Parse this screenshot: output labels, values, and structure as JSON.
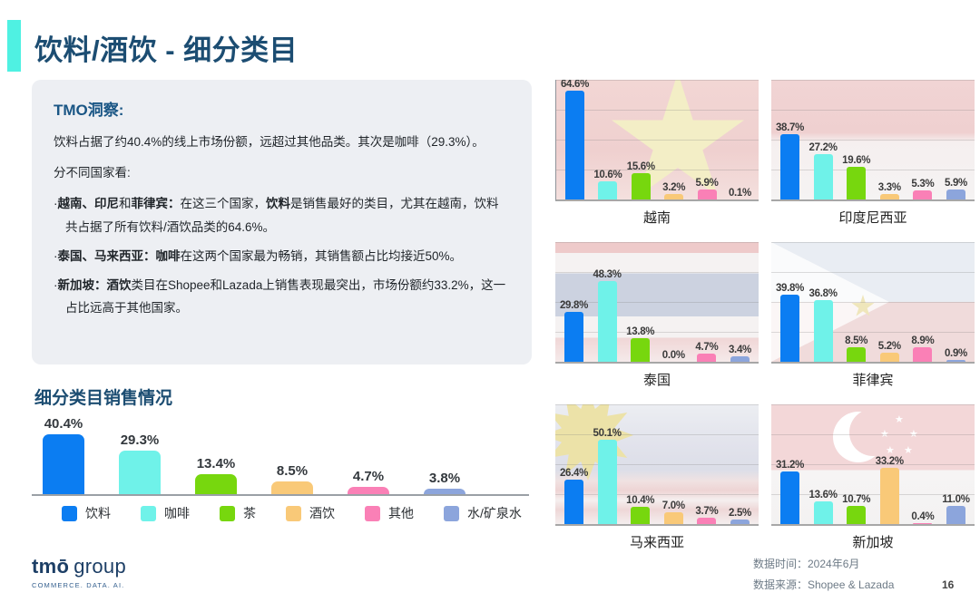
{
  "page": {
    "title": "饮料/酒饮 - 细分类目",
    "page_number": "16"
  },
  "insight": {
    "heading": "TMO洞察:",
    "para1": "饮料占据了约40.4%的线上市场份额，远超过其他品类。其次是咖啡（29.3%）。",
    "para2": "分不同国家看:",
    "bullets": [
      {
        "segments": [
          {
            "text": "·",
            "bold": false
          },
          {
            "text": "越南、印尼",
            "bold": true
          },
          {
            "text": "和",
            "bold": false
          },
          {
            "text": "菲律宾：",
            "bold": true
          },
          {
            "text": "在这三个国家，",
            "bold": false
          },
          {
            "text": "饮料",
            "bold": true
          },
          {
            "text": "是销售最好的类目，尤其在越南，饮料共占据了所有饮料/酒饮品类的64.6%。",
            "bold": false
          }
        ]
      },
      {
        "segments": [
          {
            "text": "·",
            "bold": false
          },
          {
            "text": "泰国、马来西亚：",
            "bold": true
          },
          {
            "text": "咖啡",
            "bold": true
          },
          {
            "text": "在这两个国家最为畅销，其销售额占比均接近50%。",
            "bold": false
          }
        ]
      },
      {
        "segments": [
          {
            "text": "·",
            "bold": false
          },
          {
            "text": "新加坡：",
            "bold": true
          },
          {
            "text": "酒饮",
            "bold": true
          },
          {
            "text": "类目在Shopee和Lazada上销售表现最突出，市场份额约33.2%，这一占比远高于其他国家。",
            "bold": false
          }
        ]
      }
    ]
  },
  "palette": {
    "series": [
      "#0b7df2",
      "#6ff2e9",
      "#77d70e",
      "#f9c978",
      "#fa80b6",
      "#8ca5dc"
    ],
    "accent_teal": "#4ff1e2",
    "title_navy": "#1c4d72"
  },
  "legend": {
    "items": [
      {
        "label": "饮料",
        "color": "#0b7df2"
      },
      {
        "label": "咖啡",
        "color": "#6ff2e9"
      },
      {
        "label": "茶",
        "color": "#77d70e"
      },
      {
        "label": "酒饮",
        "color": "#f9c978"
      },
      {
        "label": "其他",
        "color": "#fa80b6"
      },
      {
        "label": "水/矿泉水",
        "color": "#8ca5dc"
      }
    ],
    "position": "bottom"
  },
  "chart_data": [
    {
      "type": "bar",
      "title": "细分类目销售情况",
      "unit": "%",
      "ylim": [
        0,
        43
      ],
      "grid": false,
      "categories": [
        "饮料",
        "咖啡",
        "茶",
        "酒饮",
        "其他",
        "水/矿泉水"
      ],
      "values": [
        40.4,
        29.3,
        13.4,
        8.5,
        4.7,
        3.8
      ]
    },
    {
      "type": "bar",
      "country": "越南",
      "flag": "vietnam-flag",
      "unit": "%",
      "ylim": [
        0,
        68
      ],
      "grid": true,
      "categories": [
        "饮料",
        "咖啡",
        "茶",
        "酒饮",
        "其他",
        "水/矿泉水"
      ],
      "values": [
        64.6,
        10.6,
        15.6,
        3.2,
        5.9,
        0.1
      ]
    },
    {
      "type": "bar",
      "country": "印度尼西亚",
      "flag": "indonesia-flag",
      "unit": "%",
      "ylim": [
        0,
        68
      ],
      "grid": true,
      "categories": [
        "饮料",
        "咖啡",
        "茶",
        "酒饮",
        "其他",
        "水/矿泉水"
      ],
      "values": [
        38.7,
        27.2,
        19.6,
        3.3,
        5.3,
        5.9
      ]
    },
    {
      "type": "bar",
      "country": "泰国",
      "flag": "thailand-flag",
      "unit": "%",
      "ylim": [
        0,
        68
      ],
      "grid": true,
      "categories": [
        "饮料",
        "咖啡",
        "茶",
        "酒饮",
        "其他",
        "水/矿泉水"
      ],
      "values": [
        29.8,
        48.3,
        13.8,
        0.0,
        4.7,
        3.4
      ]
    },
    {
      "type": "bar",
      "country": "菲律宾",
      "flag": "philippines-flag",
      "unit": "%",
      "ylim": [
        0,
        68
      ],
      "grid": true,
      "categories": [
        "饮料",
        "咖啡",
        "茶",
        "酒饮",
        "其他",
        "水/矿泉水"
      ],
      "values": [
        39.8,
        36.8,
        8.5,
        5.2,
        8.9,
        0.9
      ]
    },
    {
      "type": "bar",
      "country": "马来西亚",
      "flag": "malaysia-flag",
      "unit": "%",
      "ylim": [
        0,
        68
      ],
      "grid": true,
      "categories": [
        "饮料",
        "咖啡",
        "茶",
        "酒饮",
        "其他",
        "水/矿泉水"
      ],
      "values": [
        26.4,
        50.1,
        10.4,
        7.0,
        3.7,
        2.5
      ]
    },
    {
      "type": "bar",
      "country": "新加坡",
      "flag": "singapore-flag",
      "unit": "%",
      "ylim": [
        0,
        68
      ],
      "grid": true,
      "categories": [
        "饮料",
        "咖啡",
        "茶",
        "酒饮",
        "其他",
        "水/矿泉水"
      ],
      "values": [
        31.2,
        13.6,
        10.7,
        33.2,
        0.4,
        11.0
      ]
    }
  ],
  "footer": {
    "data_time": "数据时间：2024年6月",
    "data_source": "数据来源：Shopee & Lazada"
  },
  "logo": {
    "brand_bold": "tmō",
    "brand_light": "group",
    "tagline": "COMMERCE. DATA. AI."
  }
}
